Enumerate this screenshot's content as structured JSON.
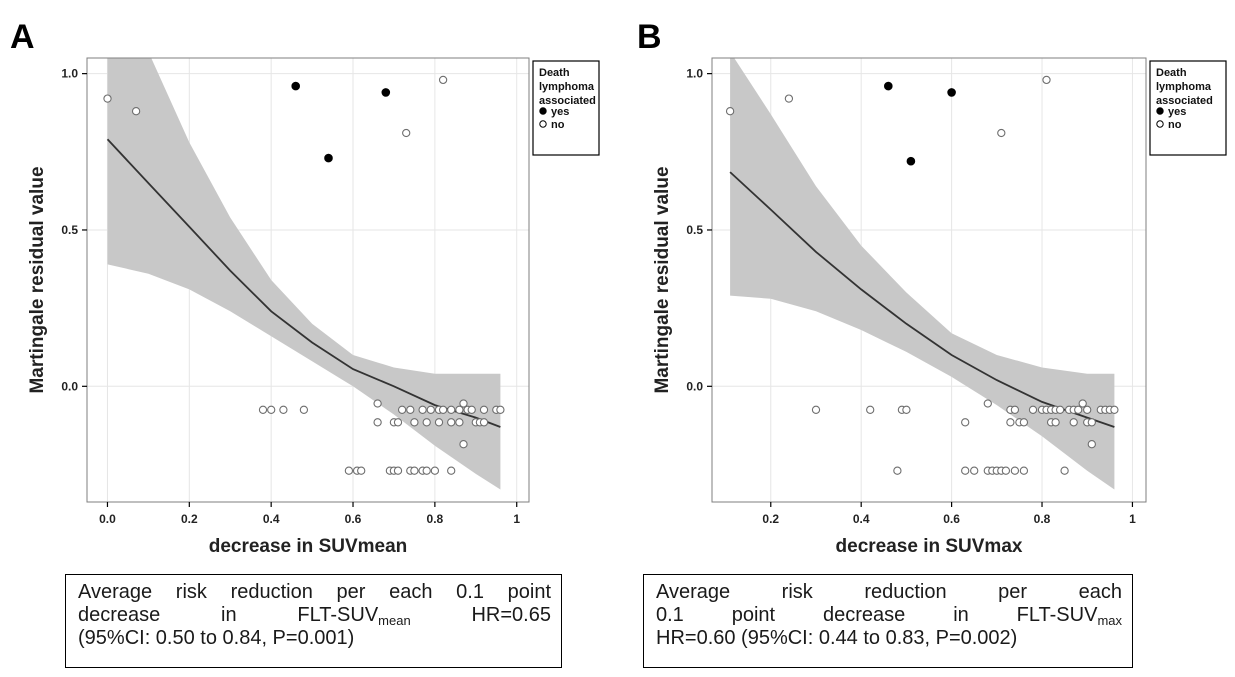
{
  "chart_data": [
    {
      "panel": "A",
      "type": "scatter",
      "xlabel": "decrease in SUVmean",
      "ylabel": "Martingale residual value",
      "xlim": [
        -0.05,
        1.03
      ],
      "ylim": [
        -0.37,
        1.05
      ],
      "xticks": [
        "0.0",
        "0.2",
        "0.4",
        "0.6",
        "0.8",
        "1"
      ],
      "xtick_values": [
        0.0,
        0.2,
        0.4,
        0.6,
        0.8,
        1.0
      ],
      "yticks": [
        "0.0",
        "0.5",
        "1.0"
      ],
      "ytick_values": [
        0.0,
        0.5,
        1.0
      ],
      "grid": true,
      "legend": {
        "title_lines": [
          "Death",
          "lymphoma",
          "associated"
        ],
        "entries": [
          {
            "label": "yes",
            "marker": "filled"
          },
          {
            "label": "no",
            "marker": "open"
          }
        ],
        "placement": "top-right-outside"
      },
      "series": [
        {
          "name": "yes",
          "marker": "filled",
          "points": [
            [
              0.46,
              0.96
            ],
            [
              0.68,
              0.94
            ],
            [
              0.54,
              0.73
            ]
          ]
        },
        {
          "name": "no",
          "marker": "open",
          "points": [
            [
              0.0,
              0.92
            ],
            [
              0.07,
              0.88
            ],
            [
              0.73,
              0.81
            ],
            [
              0.82,
              0.98
            ],
            [
              0.38,
              -0.075
            ],
            [
              0.4,
              -0.075
            ],
            [
              0.43,
              -0.075
            ],
            [
              0.48,
              -0.075
            ],
            [
              0.66,
              -0.055
            ],
            [
              0.72,
              -0.075
            ],
            [
              0.74,
              -0.075
            ],
            [
              0.77,
              -0.075
            ],
            [
              0.79,
              -0.075
            ],
            [
              0.81,
              -0.075
            ],
            [
              0.82,
              -0.075
            ],
            [
              0.84,
              -0.075
            ],
            [
              0.86,
              -0.075
            ],
            [
              0.88,
              -0.075
            ],
            [
              0.89,
              -0.075
            ],
            [
              0.92,
              -0.075
            ],
            [
              0.95,
              -0.075
            ],
            [
              0.96,
              -0.075
            ],
            [
              0.87,
              -0.055
            ],
            [
              0.66,
              -0.115
            ],
            [
              0.7,
              -0.115
            ],
            [
              0.71,
              -0.115
            ],
            [
              0.75,
              -0.115
            ],
            [
              0.78,
              -0.115
            ],
            [
              0.81,
              -0.115
            ],
            [
              0.84,
              -0.115
            ],
            [
              0.86,
              -0.115
            ],
            [
              0.9,
              -0.115
            ],
            [
              0.91,
              -0.115
            ],
            [
              0.92,
              -0.115
            ],
            [
              0.87,
              -0.185
            ],
            [
              0.59,
              -0.27
            ],
            [
              0.61,
              -0.27
            ],
            [
              0.62,
              -0.27
            ],
            [
              0.69,
              -0.27
            ],
            [
              0.7,
              -0.27
            ],
            [
              0.71,
              -0.27
            ],
            [
              0.74,
              -0.27
            ],
            [
              0.75,
              -0.27
            ],
            [
              0.77,
              -0.27
            ],
            [
              0.78,
              -0.27
            ],
            [
              0.8,
              -0.27
            ],
            [
              0.84,
              -0.27
            ]
          ]
        }
      ],
      "fit": {
        "x": [
          0.0,
          0.1,
          0.2,
          0.3,
          0.4,
          0.5,
          0.6,
          0.7,
          0.8,
          0.9,
          0.96
        ],
        "y": [
          0.79,
          0.65,
          0.51,
          0.37,
          0.24,
          0.14,
          0.055,
          0.0,
          -0.06,
          -0.1,
          -0.13
        ],
        "lower": [
          0.39,
          0.36,
          0.31,
          0.24,
          0.16,
          0.08,
          0.0,
          -0.09,
          -0.19,
          -0.28,
          -0.33
        ],
        "upper": [
          1.07,
          1.07,
          0.78,
          0.54,
          0.34,
          0.2,
          0.1,
          0.06,
          0.04,
          0.04,
          0.04
        ]
      },
      "caption": {
        "lines": [
          {
            "text": "Average risk reduction per each 0.1 point"
          },
          {
            "text": "decrease in FLT-SUV",
            "sub": "mean",
            "after": " HR=0.65"
          },
          {
            "text": "(95%CI: 0.50 to 0.84, P=0.001)"
          }
        ]
      }
    },
    {
      "panel": "B",
      "type": "scatter",
      "xlabel": "decrease in SUVmax",
      "ylabel": "Martingale residual value",
      "xlim": [
        0.07,
        1.03
      ],
      "ylim": [
        -0.37,
        1.05
      ],
      "xticks": [
        "0.2",
        "0.4",
        "0.6",
        "0.8",
        "1"
      ],
      "xtick_values": [
        0.2,
        0.4,
        0.6,
        0.8,
        1.0
      ],
      "yticks": [
        "0.0",
        "0.5",
        "1.0"
      ],
      "ytick_values": [
        0.0,
        0.5,
        1.0
      ],
      "grid": true,
      "legend": {
        "title_lines": [
          "Death",
          "lymphoma",
          "associated"
        ],
        "entries": [
          {
            "label": "yes",
            "marker": "filled"
          },
          {
            "label": "no",
            "marker": "open"
          }
        ],
        "placement": "top-right-outside"
      },
      "series": [
        {
          "name": "yes",
          "marker": "filled",
          "points": [
            [
              0.46,
              0.96
            ],
            [
              0.6,
              0.94
            ],
            [
              0.51,
              0.72
            ]
          ]
        },
        {
          "name": "no",
          "marker": "open",
          "points": [
            [
              0.11,
              0.88
            ],
            [
              0.24,
              0.92
            ],
            [
              0.71,
              0.81
            ],
            [
              0.81,
              0.98
            ],
            [
              0.3,
              -0.075
            ],
            [
              0.42,
              -0.075
            ],
            [
              0.49,
              -0.075
            ],
            [
              0.5,
              -0.075
            ],
            [
              0.68,
              -0.055
            ],
            [
              0.73,
              -0.075
            ],
            [
              0.74,
              -0.075
            ],
            [
              0.78,
              -0.075
            ],
            [
              0.8,
              -0.075
            ],
            [
              0.81,
              -0.075
            ],
            [
              0.82,
              -0.075
            ],
            [
              0.83,
              -0.075
            ],
            [
              0.84,
              -0.075
            ],
            [
              0.86,
              -0.075
            ],
            [
              0.87,
              -0.075
            ],
            [
              0.88,
              -0.075
            ],
            [
              0.9,
              -0.075
            ],
            [
              0.93,
              -0.075
            ],
            [
              0.94,
              -0.075
            ],
            [
              0.95,
              -0.075
            ],
            [
              0.96,
              -0.075
            ],
            [
              0.89,
              -0.055
            ],
            [
              0.63,
              -0.115
            ],
            [
              0.73,
              -0.115
            ],
            [
              0.75,
              -0.115
            ],
            [
              0.76,
              -0.115
            ],
            [
              0.82,
              -0.115
            ],
            [
              0.83,
              -0.115
            ],
            [
              0.87,
              -0.115
            ],
            [
              0.9,
              -0.115
            ],
            [
              0.91,
              -0.115
            ],
            [
              0.91,
              -0.185
            ],
            [
              0.48,
              -0.27
            ],
            [
              0.63,
              -0.27
            ],
            [
              0.65,
              -0.27
            ],
            [
              0.68,
              -0.27
            ],
            [
              0.69,
              -0.27
            ],
            [
              0.7,
              -0.27
            ],
            [
              0.71,
              -0.27
            ],
            [
              0.72,
              -0.27
            ],
            [
              0.74,
              -0.27
            ],
            [
              0.76,
              -0.27
            ],
            [
              0.85,
              -0.27
            ]
          ]
        }
      ],
      "fit": {
        "x": [
          0.11,
          0.2,
          0.3,
          0.4,
          0.5,
          0.6,
          0.7,
          0.8,
          0.9,
          0.96
        ],
        "y": [
          0.685,
          0.565,
          0.43,
          0.31,
          0.2,
          0.1,
          0.02,
          -0.05,
          -0.1,
          -0.13
        ],
        "lower": [
          0.29,
          0.28,
          0.24,
          0.18,
          0.11,
          0.03,
          -0.06,
          -0.16,
          -0.27,
          -0.33
        ],
        "upper": [
          1.07,
          0.87,
          0.64,
          0.45,
          0.3,
          0.17,
          0.1,
          0.06,
          0.04,
          0.04
        ]
      },
      "caption": {
        "lines": [
          {
            "text": "Average risk reduction per each"
          },
          {
            "text": "0.1 point decrease in FLT-SUV",
            "sub": "max"
          },
          {
            "text": "HR=0.60 (95%CI: 0.44 to 0.83, P=0.002)"
          }
        ]
      }
    }
  ]
}
